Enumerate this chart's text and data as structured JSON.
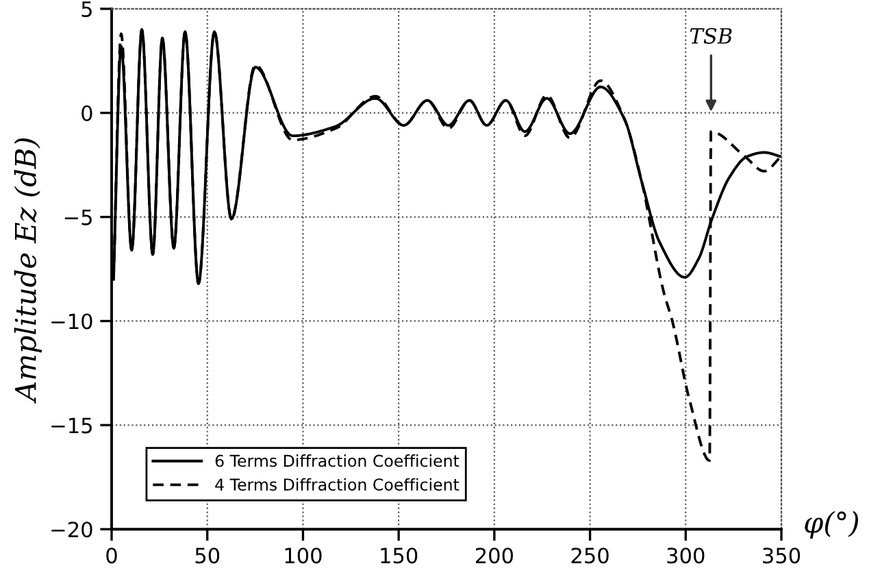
{
  "chart_data": {
    "type": "line",
    "xlabel": "φ(°)",
    "ylabel": "Amplitude Ez (dB)",
    "xlim": [
      0,
      350
    ],
    "ylim": [
      -20,
      5
    ],
    "xticks": [
      0,
      50,
      100,
      150,
      200,
      250,
      300,
      350
    ],
    "yticks": [
      -20,
      -15,
      -10,
      -5,
      0,
      5
    ],
    "grid": true,
    "legend": "bottom left",
    "marker": "none",
    "annotations": [
      "TSB"
    ],
    "series": [
      {
        "name": "6 Terms Diffraction Coefficient",
        "color": "#000000",
        "line_style": "solid",
        "x": [
          1,
          5,
          10.5,
          15.8,
          21.5,
          26.5,
          32.5,
          38.4,
          45.4,
          53.7,
          62.6,
          75.1,
          94.5,
          117,
          137.9,
          152.7,
          165,
          176,
          187,
          196,
          206,
          216,
          227.4,
          239.5,
          255.5,
          268,
          277,
          286.3,
          299.5,
          306.8,
          313.7,
          322.8,
          332,
          341,
          349.8
        ],
        "values": [
          -8,
          3.2,
          -6.6,
          4.0,
          -6.8,
          3.6,
          -6.5,
          3.9,
          -8.2,
          3.9,
          -5.1,
          2.2,
          -1.1,
          -0.65,
          0.7,
          -0.6,
          0.6,
          -0.6,
          0.6,
          -0.6,
          0.6,
          -0.9,
          0.7,
          -1.0,
          1.25,
          -0.3,
          -3.3,
          -6.2,
          -7.9,
          -7.0,
          -5.1,
          -3.1,
          -2.1,
          -1.9,
          -2.1
        ]
      },
      {
        "name": "4 Terms Diffraction Coefficient",
        "color": "#000000",
        "line_style": "dashed",
        "x": [
          1,
          5,
          10.5,
          15.8,
          21.5,
          26.5,
          32.5,
          38.4,
          45.4,
          53.7,
          62.6,
          75.1,
          94.5,
          117,
          137.9,
          152.7,
          165,
          176,
          187,
          196,
          206,
          216,
          227.4,
          239.5,
          255.5,
          268,
          277,
          288.5,
          293,
          302,
          312.5,
          313.2,
          331,
          341,
          349.8
        ],
        "values": [
          -8,
          3.8,
          -6.6,
          4.0,
          -6.8,
          3.6,
          -6.5,
          3.9,
          -8.2,
          3.9,
          -5.1,
          2.3,
          -1.3,
          -0.75,
          0.8,
          -0.6,
          0.6,
          -0.75,
          0.6,
          -0.6,
          0.6,
          -1.1,
          0.85,
          -1.2,
          1.55,
          -0.3,
          -3.3,
          -8.6,
          -10,
          -13.8,
          -16.7,
          -0.9,
          -2.1,
          -2.8,
          -2.1
        ]
      }
    ]
  }
}
